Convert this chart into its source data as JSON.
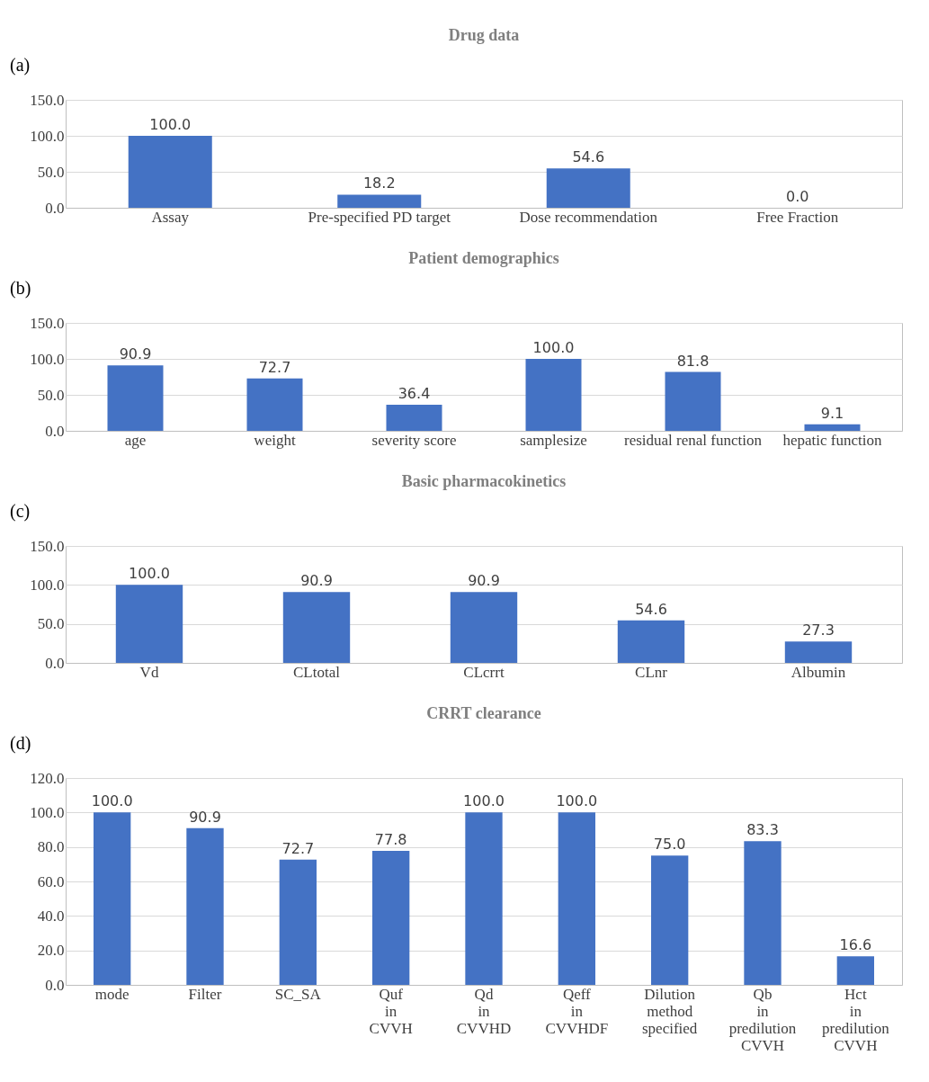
{
  "chart_data": [
    {
      "type": "bar",
      "title": "Drug data",
      "annotations": [
        "(a)"
      ],
      "categories": [
        "Assay",
        "Pre-specified PD target",
        "Dose recommendation",
        "Free Fraction"
      ],
      "values": [
        100.0,
        18.2,
        54.6,
        0.0
      ],
      "value_labels": [
        "100.0",
        "18.2",
        "54.6",
        "0.0"
      ],
      "color": "#4472c4",
      "ylim": [
        0,
        150
      ],
      "yticks": [
        {
          "value": 0,
          "label": "0.0"
        },
        {
          "value": 50,
          "label": "50.0"
        },
        {
          "value": 100,
          "label": "100.0"
        },
        {
          "value": 150,
          "label": "150.0"
        }
      ],
      "grid": "y"
    },
    {
      "type": "bar",
      "title": "Patient demographics",
      "annotations": [
        "(b)"
      ],
      "categories": [
        "age",
        "weight",
        "severity score",
        "samplesize",
        "residual renal function",
        "hepatic function"
      ],
      "values": [
        90.9,
        72.7,
        36.4,
        100.0,
        81.8,
        9.1
      ],
      "value_labels": [
        "90.9",
        "72.7",
        "36.4",
        "100.0",
        "81.8",
        "9.1"
      ],
      "color": "#4472c4",
      "ylim": [
        0,
        150
      ],
      "yticks": [
        {
          "value": 0,
          "label": "0.0"
        },
        {
          "value": 50,
          "label": "50.0"
        },
        {
          "value": 100,
          "label": "100.0"
        },
        {
          "value": 150,
          "label": "150.0"
        }
      ],
      "grid": "y"
    },
    {
      "type": "bar",
      "title": "Basic pharmacokinetics",
      "annotations": [
        "(c)"
      ],
      "categories": [
        "Vd",
        "CLtotal",
        "CLcrrt",
        "CLnr",
        "Albumin"
      ],
      "values": [
        100.0,
        90.9,
        90.9,
        54.6,
        27.3
      ],
      "value_labels": [
        "100.0",
        "90.9",
        "90.9",
        "54.6",
        "27.3"
      ],
      "color": "#4472c4",
      "ylim": [
        0,
        150
      ],
      "yticks": [
        {
          "value": 0,
          "label": "0.0"
        },
        {
          "value": 50,
          "label": "50.0"
        },
        {
          "value": 100,
          "label": "100.0"
        },
        {
          "value": 150,
          "label": "150.0"
        }
      ],
      "grid": "y"
    },
    {
      "type": "bar",
      "title": "CRRT clearance",
      "annotations": [
        "(d)"
      ],
      "categories": [
        "mode",
        "Filter",
        "SC_SA",
        "Quf in CVVH",
        "Qd in CVVHD",
        "Qeff in CVVHDF",
        "Dilution method specified",
        "Qb in predilution CVVH",
        "Hct in predilution CVVH"
      ],
      "values": [
        100.0,
        90.9,
        72.7,
        77.8,
        100.0,
        100.0,
        75.0,
        83.3,
        16.6
      ],
      "value_labels": [
        "100.0",
        "90.9",
        "72.7",
        "77.8",
        "100.0",
        "100.0",
        "75.0",
        "83.3",
        "16.6"
      ],
      "color": "#4472c4",
      "ylim": [
        0,
        120
      ],
      "yticks": [
        {
          "value": 0,
          "label": "0.0"
        },
        {
          "value": 20,
          "label": "20.0"
        },
        {
          "value": 40,
          "label": "40.0"
        },
        {
          "value": 60,
          "label": "60.0"
        },
        {
          "value": 80,
          "label": "80.0"
        },
        {
          "value": 100,
          "label": "100.0"
        },
        {
          "value": 120,
          "label": "120.0"
        }
      ],
      "grid": "y"
    }
  ]
}
